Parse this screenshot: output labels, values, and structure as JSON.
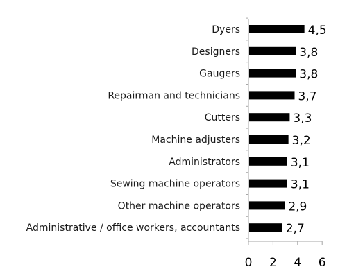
{
  "chart_data": {
    "type": "bar",
    "orientation": "horizontal",
    "categories": [
      "Dyers",
      "Designers",
      "Gaugers",
      "Repairman and technicians",
      "Cutters",
      "Machine adjusters",
      "Administrators",
      "Sewing machine operators",
      "Other machine operators",
      "Administrative / office workers, accountants"
    ],
    "values": [
      4.5,
      3.8,
      3.8,
      3.7,
      3.3,
      3.2,
      3.1,
      3.1,
      2.9,
      2.7
    ],
    "value_labels": [
      "4,5",
      "3,8",
      "3,8",
      "3,7",
      "3,3",
      "3,2",
      "3,1",
      "3,1",
      "2,9",
      "2,7"
    ],
    "xlim": [
      0,
      6
    ],
    "x_ticks": [
      0,
      2,
      4,
      6
    ],
    "x_tick_labels": [
      "0",
      "2",
      "4",
      "6"
    ],
    "title": "",
    "xlabel": "",
    "ylabel": "",
    "grid": false,
    "legend": "none",
    "colors": {
      "bar": "#000000",
      "axis": "#a6a6a6",
      "text": "#1a1a1a"
    }
  }
}
